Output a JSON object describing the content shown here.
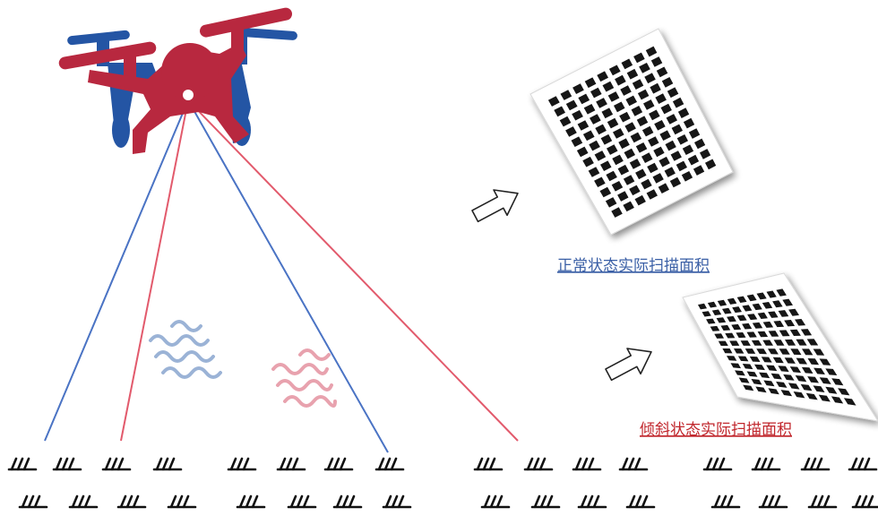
{
  "labels": {
    "normal": "正常状态实际扫描面积",
    "tilted": "倾斜状态实际扫描面积"
  },
  "colors": {
    "drone_red": "#b8283f",
    "drone_blue": "#2455a4",
    "beam_red": "#e25a6c",
    "beam_blue": "#4a73c4",
    "wave_red": "#e8a2ae",
    "wave_blue": "#9bb3d6",
    "grid_square": "#141414",
    "text_blue": "#3a5fa6",
    "text_red": "#c1272d"
  },
  "icons": [
    "drone-icon",
    "arrow-outline-icon",
    "grass-tuft-icon",
    "wave-icon"
  ]
}
